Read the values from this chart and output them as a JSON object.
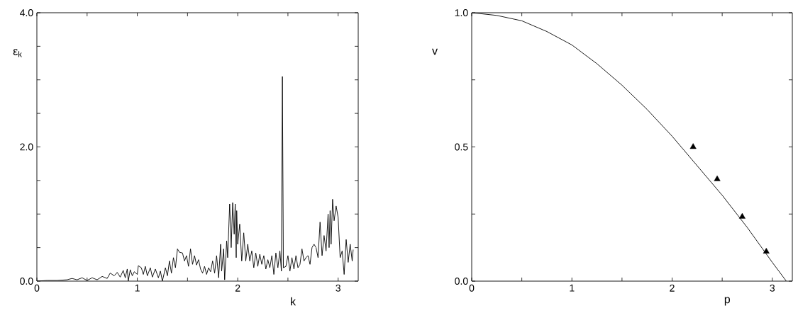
{
  "chart_data": [
    {
      "type": "line",
      "xlabel": "k",
      "ylabel": "ε$_{k}$",
      "color": "#000000",
      "marker": "none",
      "line_style": "solid",
      "x": [
        0,
        0.1,
        0.2,
        0.3,
        0.35,
        0.4,
        0.45,
        0.5,
        0.55,
        0.6,
        0.65,
        0.7,
        0.73,
        0.77,
        0.8,
        0.83,
        0.86,
        0.88,
        0.9,
        0.91,
        0.93,
        0.95,
        0.97,
        1.0,
        1.01,
        1.04,
        1.06,
        1.08,
        1.1,
        1.13,
        1.15,
        1.18,
        1.21,
        1.23,
        1.25,
        1.28,
        1.3,
        1.32,
        1.34,
        1.36,
        1.38,
        1.4,
        1.42,
        1.45,
        1.47,
        1.49,
        1.51,
        1.53,
        1.55,
        1.57,
        1.59,
        1.61,
        1.63,
        1.65,
        1.67,
        1.69,
        1.71,
        1.73,
        1.75,
        1.77,
        1.79,
        1.81,
        1.83,
        1.84,
        1.86,
        1.87,
        1.89,
        1.9,
        1.92,
        1.935,
        1.95,
        1.965,
        1.975,
        1.985,
        1.99,
        2.0,
        2.02,
        2.04,
        2.06,
        2.08,
        2.1,
        2.12,
        2.14,
        2.16,
        2.18,
        2.2,
        2.22,
        2.24,
        2.26,
        2.28,
        2.3,
        2.32,
        2.34,
        2.36,
        2.38,
        2.4,
        2.42,
        2.435,
        2.445,
        2.455,
        2.48,
        2.5,
        2.52,
        2.54,
        2.56,
        2.58,
        2.6,
        2.62,
        2.64,
        2.66,
        2.68,
        2.7,
        2.72,
        2.74,
        2.76,
        2.78,
        2.8,
        2.82,
        2.84,
        2.86,
        2.88,
        2.9,
        2.91,
        2.92,
        2.93,
        2.945,
        2.96,
        2.98,
        3.0,
        3.02,
        3.04,
        3.06,
        3.08,
        3.1,
        3.12,
        3.14,
        3.15
      ],
      "values": [
        0,
        0.01,
        0.01,
        0.02,
        0.04,
        0.02,
        0.05,
        0.01,
        0.05,
        0.02,
        0.07,
        0.04,
        0.12,
        0.08,
        0.13,
        0.06,
        0.16,
        0.05,
        0.18,
        0.0,
        0.17,
        0.08,
        0.14,
        0.1,
        0.23,
        0.2,
        0.1,
        0.22,
        0.08,
        0.2,
        0.06,
        0.18,
        0.05,
        0.15,
        0.0,
        0.2,
        0.08,
        0.3,
        0.12,
        0.35,
        0.2,
        0.48,
        0.43,
        0.42,
        0.3,
        0.38,
        0.22,
        0.48,
        0.25,
        0.38,
        0.24,
        0.32,
        0.18,
        0.12,
        0.22,
        0.1,
        0.2,
        0.14,
        0.3,
        0.12,
        0.38,
        0.05,
        0.55,
        0.15,
        0.48,
        0.02,
        0.6,
        0.35,
        1.15,
        0.5,
        1.17,
        0.7,
        1.15,
        0.35,
        1.05,
        0.55,
        0.85,
        0.3,
        0.72,
        0.3,
        0.55,
        0.3,
        0.45,
        0.2,
        0.42,
        0.22,
        0.4,
        0.25,
        0.38,
        0.18,
        0.32,
        0.2,
        0.38,
        0.1,
        0.42,
        0.2,
        0.45,
        0.15,
        3.05,
        0.2,
        0.22,
        0.38,
        0.15,
        0.35,
        0.18,
        0.38,
        0.2,
        0.25,
        0.48,
        0.3,
        0.35,
        0.38,
        0.25,
        0.5,
        0.55,
        0.5,
        0.35,
        0.88,
        0.38,
        0.68,
        0.45,
        1.0,
        0.5,
        1.05,
        0.55,
        1.22,
        0.9,
        1.12,
        0.95,
        0.35,
        0.45,
        0.1,
        0.62,
        0.28,
        0.55,
        0.3,
        0.47
      ],
      "xlim": [
        0,
        3.2
      ],
      "xticks": [
        0,
        {
          "value": 0.5,
          "label": null
        },
        1,
        {
          "value": 1.5,
          "label": null
        },
        2,
        {
          "value": 2.5,
          "label": null
        },
        3
      ],
      "ylim": [
        0,
        4
      ],
      "yticks": [
        {
          "value": 0,
          "label": "0.0"
        },
        {
          "value": 0.5,
          "label": null
        },
        {
          "value": 1,
          "label": null
        },
        {
          "value": 1.5,
          "label": null
        },
        {
          "value": 2,
          "label": "2.0"
        },
        {
          "value": 2.5,
          "label": null
        },
        {
          "value": 3,
          "label": null
        },
        {
          "value": 3.5,
          "label": null
        },
        {
          "value": 4,
          "label": "4.0"
        }
      ]
    },
    {
      "type": "line",
      "xlabel": "p",
      "ylabel": "v",
      "series": [
        {
          "type": "line",
          "color": "#000000",
          "marker": "none",
          "line_style": "solid",
          "x": [
            0,
            0.25,
            0.5,
            0.75,
            1,
            1.25,
            1.5,
            1.75,
            2,
            2.25,
            2.5,
            2.75,
            3,
            3.14
          ],
          "values": [
            1,
            0.99,
            0.97,
            0.93,
            0.88,
            0.81,
            0.73,
            0.64,
            0.54,
            0.43,
            0.32,
            0.2,
            0.07,
            0.0
          ]
        },
        {
          "type": "scatter",
          "color": "#000000",
          "marker": "triangle",
          "x": [
            2.21,
            2.45,
            2.7,
            2.94
          ],
          "values": [
            0.5,
            0.38,
            0.24,
            0.11
          ]
        }
      ],
      "xlim": [
        0,
        3.2
      ],
      "xticks": [
        0,
        {
          "value": 0.5,
          "label": null
        },
        1,
        {
          "value": 1.5,
          "label": null
        },
        2,
        {
          "value": 2.5,
          "label": null
        },
        3
      ],
      "ylim": [
        0,
        1
      ],
      "yticks": [
        {
          "value": 0,
          "label": "0.0"
        },
        {
          "value": 0.25,
          "label": null
        },
        {
          "value": 0.5,
          "label": "0.5"
        },
        {
          "value": 0.75,
          "label": null
        },
        {
          "value": 1,
          "label": "1.0"
        }
      ]
    }
  ]
}
